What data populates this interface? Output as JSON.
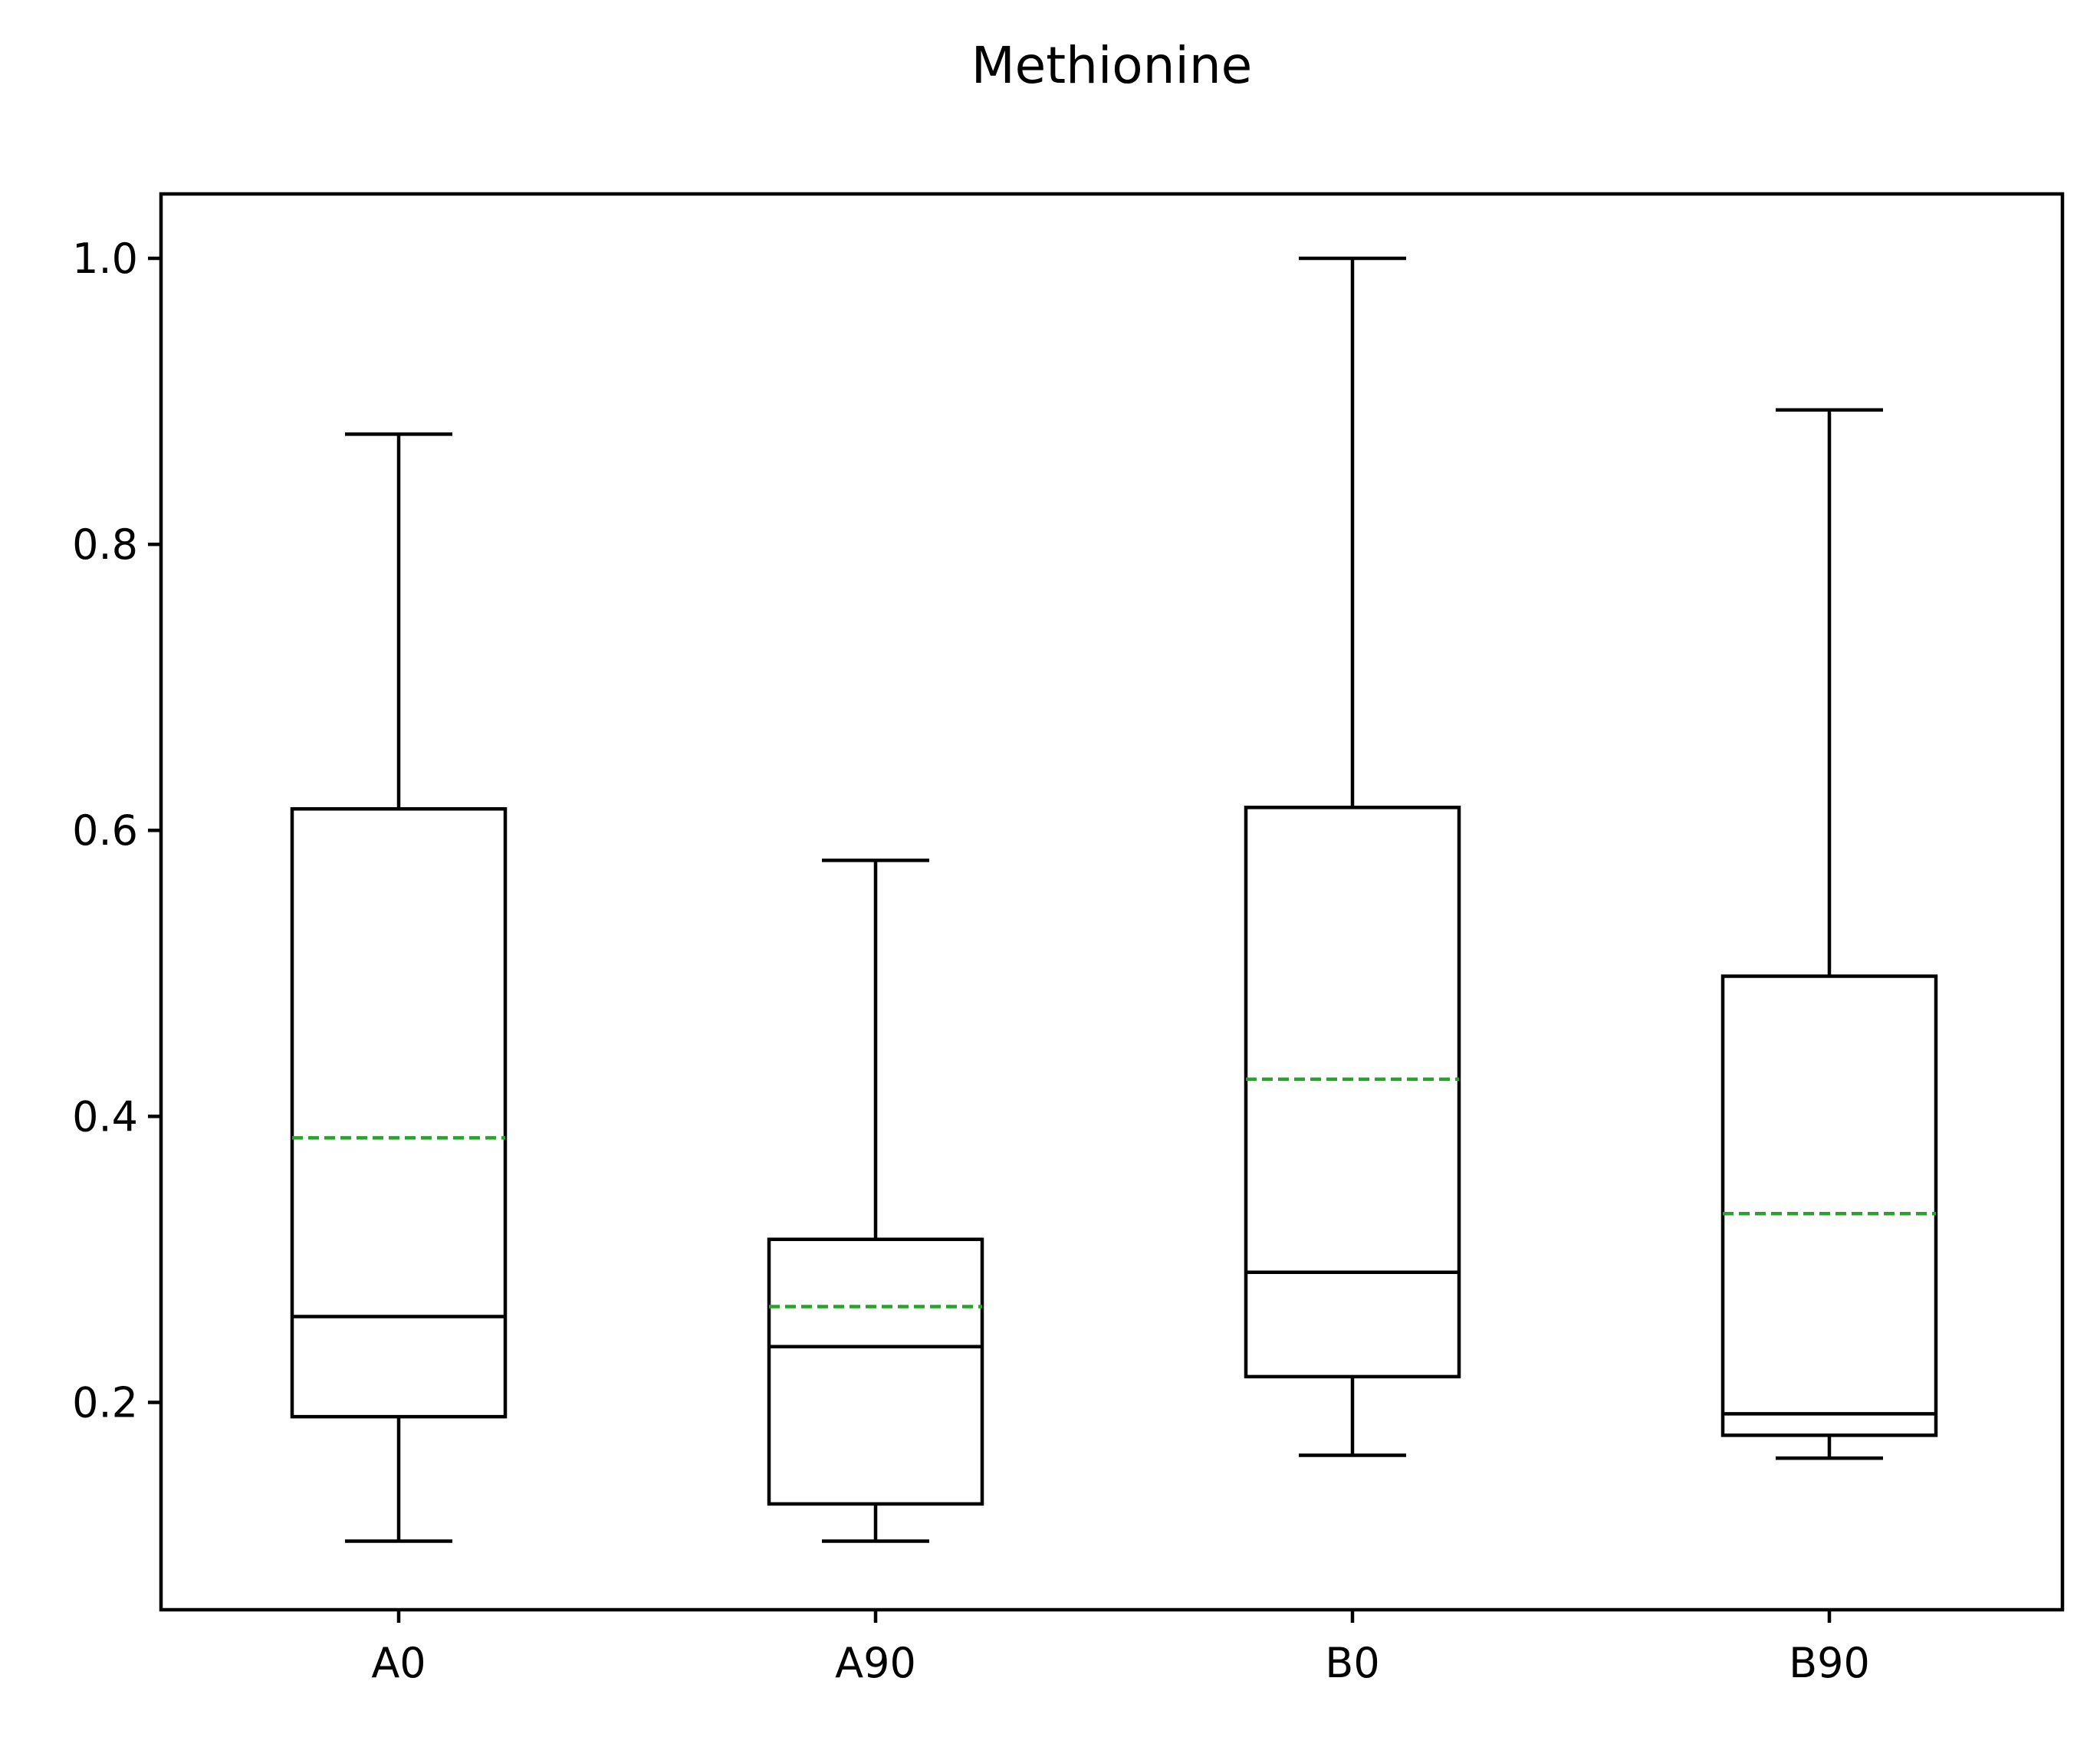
{
  "chart_data": {
    "type": "boxplot",
    "title": "Methionine",
    "xlabel": "",
    "ylabel": "",
    "categories": [
      "A0",
      "A90",
      "B0",
      "B90"
    ],
    "ylim": [
      0.055,
      1.045
    ],
    "yticks": [
      0.2,
      0.4,
      0.6,
      0.8,
      1.0
    ],
    "ytick_labels": [
      "0.2",
      "0.4",
      "0.6",
      "0.8",
      "1.0"
    ],
    "grid": false,
    "boxes": [
      {
        "label": "A0",
        "whisker_low": 0.103,
        "q1": 0.19,
        "median": 0.26,
        "mean": 0.385,
        "q3": 0.615,
        "whisker_high": 0.877
      },
      {
        "label": "A90",
        "whisker_low": 0.103,
        "q1": 0.129,
        "median": 0.239,
        "mean": 0.267,
        "q3": 0.314,
        "whisker_high": 0.579
      },
      {
        "label": "B0",
        "whisker_low": 0.163,
        "q1": 0.218,
        "median": 0.291,
        "mean": 0.426,
        "q3": 0.616,
        "whisker_high": 1.0
      },
      {
        "label": "B90",
        "whisker_low": 0.161,
        "q1": 0.177,
        "median": 0.192,
        "mean": 0.332,
        "q3": 0.498,
        "whisker_high": 0.894
      }
    ],
    "colors": {
      "box": "#000000",
      "median": "#000000",
      "mean": "#2ca02c"
    },
    "mean_line_style": "dashed"
  }
}
